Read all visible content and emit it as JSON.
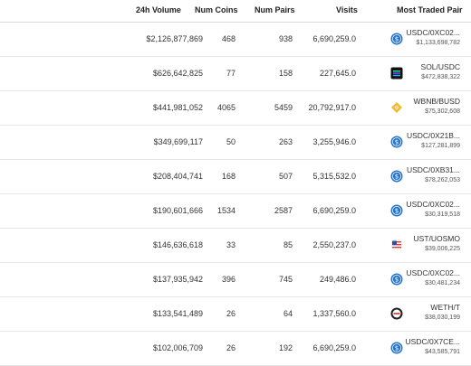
{
  "columns": {
    "volume": "24h Volume",
    "coins": "Num Coins",
    "pairs": "Num Pairs",
    "visits": "Visits",
    "most_traded": "Most Traded Pair"
  },
  "rows": [
    {
      "volume": "$2,126,877,869",
      "coins": "468",
      "pairs": "938",
      "visits": "6,690,259.0",
      "pair": "USDC/0XC02...",
      "pair_volume": "$1,133,698,782",
      "icon": "usdc-icon"
    },
    {
      "volume": "$626,642,825",
      "coins": "77",
      "pairs": "158",
      "visits": "227,645.0",
      "pair": "SOL/USDC",
      "pair_volume": "$472,838,322",
      "icon": "solana-icon"
    },
    {
      "volume": "$441,981,052",
      "coins": "4065",
      "pairs": "5459",
      "visits": "20,792,917.0",
      "pair": "WBNB/BUSD",
      "pair_volume": "$75,302,608",
      "icon": "bnb-icon"
    },
    {
      "volume": "$349,699,117",
      "coins": "50",
      "pairs": "263",
      "visits": "3,255,946.0",
      "pair": "USDC/0X21B...",
      "pair_volume": "$127,281,899",
      "icon": "usdc-icon"
    },
    {
      "volume": "$208,404,741",
      "coins": "168",
      "pairs": "507",
      "visits": "5,315,532.0",
      "pair": "USDC/0XB31...",
      "pair_volume": "$78,262,053",
      "icon": "usdc-icon"
    },
    {
      "volume": "$190,601,666",
      "coins": "1534",
      "pairs": "2587",
      "visits": "6,690,259.0",
      "pair": "USDC/0XC02...",
      "pair_volume": "$30,319,518",
      "icon": "usdc-icon"
    },
    {
      "volume": "$146,636,618",
      "coins": "33",
      "pairs": "85",
      "visits": "2,550,237.0",
      "pair": "UST/UOSMO",
      "pair_volume": "$39,006,225",
      "icon": "ust-icon"
    },
    {
      "volume": "$137,935,942",
      "coins": "396",
      "pairs": "745",
      "visits": "249,486.0",
      "pair": "USDC/0XC02...",
      "pair_volume": "$30,481,234",
      "icon": "usdc-icon"
    },
    {
      "volume": "$133,541,489",
      "coins": "26",
      "pairs": "64",
      "visits": "1,337,560.0",
      "pair": "WETH/T",
      "pair_volume": "$38,030,199",
      "icon": "weth-icon"
    },
    {
      "volume": "$102,006,709",
      "coins": "26",
      "pairs": "192",
      "visits": "6,690,259.0",
      "pair": "USDC/0X7CE...",
      "pair_volume": "$43,585,791",
      "icon": "usdc-icon"
    }
  ],
  "colors": {
    "usdc": "#2775ca",
    "bnb": "#f3ba2f",
    "solana": "#111111",
    "header_border": "#d9d9d9",
    "row_border": "#e6e6e6"
  }
}
